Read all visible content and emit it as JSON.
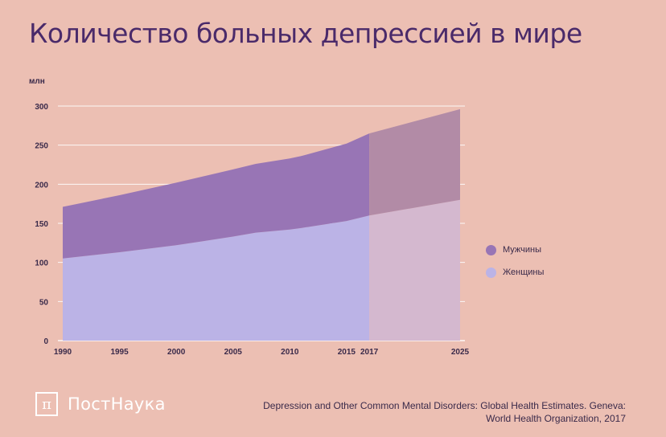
{
  "title": "Количество больных депрессией в мире",
  "chart_data": {
    "type": "area",
    "stacked": true,
    "unit_label": "млн",
    "x": [
      1990,
      1995,
      2000,
      2005,
      2007,
      2010,
      2011,
      2015,
      2017,
      2025
    ],
    "x_ticks": [
      "1990",
      "1995",
      "2000",
      "2005",
      "2010",
      "2015",
      "2017",
      "2025"
    ],
    "y_ticks": [
      "0",
      "50",
      "100",
      "150",
      "200",
      "250",
      "300"
    ],
    "ylim": [
      0,
      300
    ],
    "grid": true,
    "projection_from": 2017,
    "series": [
      {
        "name": "Женщины",
        "color": "#bbb3e6",
        "values": [
          105,
          113,
          122,
          133,
          138,
          142,
          144,
          153,
          160,
          180
        ]
      },
      {
        "name": "Мужчины",
        "color": "#9875b5",
        "values": [
          66,
          73,
          80,
          86,
          88,
          91,
          92,
          99,
          105,
          116
        ]
      }
    ],
    "totals": [
      171,
      186,
      202,
      219,
      226,
      233,
      236,
      252,
      265,
      296
    ],
    "legend_position": "right"
  },
  "legend": {
    "men_label": "Мужчины",
    "women_label": "Женщины",
    "men_color": "#9875b5",
    "women_color": "#bbb3e6"
  },
  "logo": {
    "mark": "π",
    "text": "ПостНаука"
  },
  "source": {
    "line1": "Depression and Other Common Mental Disorders: Global Health Estimates. Geneva:",
    "line2": "World Health Organization, 2017"
  }
}
